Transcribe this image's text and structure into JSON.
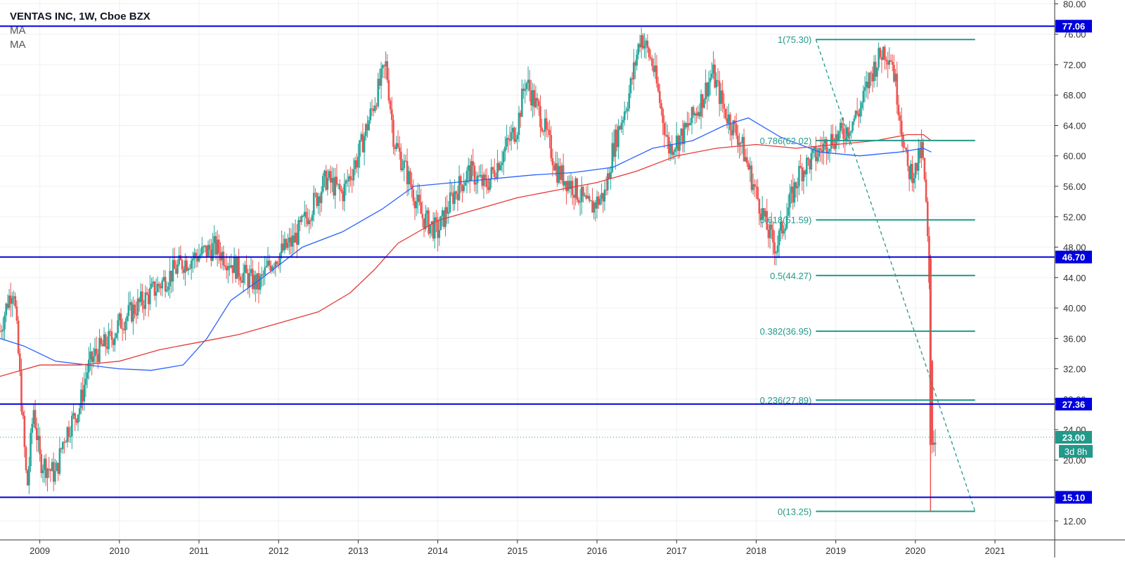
{
  "header": {
    "title": "VENTAS INC, 1W, Cboe BZX",
    "indicators": [
      "MA",
      "MA"
    ]
  },
  "colors": {
    "up": "#26a69a",
    "down": "#ef5350",
    "ma_fast": "#2962ff",
    "ma_slow": "#e53935",
    "level_line": "#0000dd",
    "fib": "#22998a",
    "grid": "#eef0f3"
  },
  "chart_data": {
    "type": "candlestick",
    "title": "VENTAS INC, 1W, Cboe BZX",
    "x_ticks": [
      "2009",
      "2010",
      "2011",
      "2012",
      "2013",
      "2014",
      "2015",
      "2016",
      "2017",
      "2018",
      "2019",
      "2020",
      "2021"
    ],
    "y_ticks": [
      "12.00",
      "20.00",
      "24.00",
      "28.00",
      "32.00",
      "36.00",
      "40.00",
      "44.00",
      "48.00",
      "52.00",
      "56.00",
      "60.00",
      "64.00",
      "68.00",
      "72.00",
      "76.00",
      "80.00"
    ],
    "ylim": [
      9.5,
      80.5
    ],
    "xlim": [
      2008.5,
      2021.75
    ],
    "grid": true,
    "close_series": [
      [
        2008.5,
        37
      ],
      [
        2008.6,
        41
      ],
      [
        2008.67,
        43
      ],
      [
        2008.73,
        34
      ],
      [
        2008.78,
        26
      ],
      [
        2008.84,
        16
      ],
      [
        2008.92,
        27
      ],
      [
        2009.0,
        20
      ],
      [
        2009.1,
        19
      ],
      [
        2009.2,
        18
      ],
      [
        2009.3,
        23
      ],
      [
        2009.4,
        25
      ],
      [
        2009.5,
        27
      ],
      [
        2009.6,
        32
      ],
      [
        2009.7,
        34
      ],
      [
        2009.8,
        35
      ],
      [
        2009.9,
        36
      ],
      [
        2010.0,
        38
      ],
      [
        2010.2,
        40
      ],
      [
        2010.4,
        42
      ],
      [
        2010.6,
        44
      ],
      [
        2010.8,
        46
      ],
      [
        2011.0,
        47
      ],
      [
        2011.2,
        48
      ],
      [
        2011.4,
        46
      ],
      [
        2011.6,
        44
      ],
      [
        2011.75,
        43
      ],
      [
        2011.9,
        46
      ],
      [
        2012.0,
        47
      ],
      [
        2012.2,
        49
      ],
      [
        2012.4,
        53
      ],
      [
        2012.6,
        57
      ],
      [
        2012.8,
        55
      ],
      [
        2013.0,
        60
      ],
      [
        2013.2,
        67
      ],
      [
        2013.35,
        72
      ],
      [
        2013.45,
        62
      ],
      [
        2013.6,
        58
      ],
      [
        2013.8,
        52
      ],
      [
        2014.0,
        50
      ],
      [
        2014.2,
        55
      ],
      [
        2014.4,
        58
      ],
      [
        2014.6,
        56
      ],
      [
        2014.8,
        60
      ],
      [
        2015.0,
        64
      ],
      [
        2015.1,
        70
      ],
      [
        2015.3,
        65
      ],
      [
        2015.5,
        58
      ],
      [
        2015.7,
        56
      ],
      [
        2015.9,
        53
      ],
      [
        2016.1,
        55
      ],
      [
        2016.2,
        61
      ],
      [
        2016.4,
        68
      ],
      [
        2016.55,
        76
      ],
      [
        2016.7,
        72
      ],
      [
        2016.9,
        61
      ],
      [
        2017.1,
        63
      ],
      [
        2017.3,
        67
      ],
      [
        2017.45,
        71
      ],
      [
        2017.6,
        66
      ],
      [
        2017.8,
        62
      ],
      [
        2018.0,
        55
      ],
      [
        2018.15,
        50
      ],
      [
        2018.25,
        48
      ],
      [
        2018.4,
        53
      ],
      [
        2018.55,
        58
      ],
      [
        2018.75,
        60
      ],
      [
        2018.9,
        62
      ],
      [
        2019.1,
        63
      ],
      [
        2019.3,
        66
      ],
      [
        2019.45,
        71
      ],
      [
        2019.6,
        74
      ],
      [
        2019.7,
        73
      ],
      [
        2019.8,
        66
      ],
      [
        2019.9,
        58
      ],
      [
        2020.0,
        58
      ],
      [
        2020.08,
        61
      ],
      [
        2020.12,
        56
      ],
      [
        2020.15,
        50
      ],
      [
        2020.18,
        40
      ],
      [
        2020.21,
        23
      ],
      [
        2020.25,
        23
      ]
    ],
    "series": [
      {
        "values": [
          [
            2008.5,
            36
          ],
          [
            2008.8,
            35
          ],
          [
            2009.2,
            33
          ],
          [
            2009.6,
            32.5
          ],
          [
            2010.0,
            32
          ],
          [
            2010.4,
            31.8
          ],
          [
            2010.8,
            32.5
          ],
          [
            2011.1,
            36
          ],
          [
            2011.4,
            41
          ],
          [
            2011.8,
            44
          ],
          [
            2012.3,
            48
          ],
          [
            2012.8,
            50
          ],
          [
            2013.3,
            53
          ],
          [
            2013.7,
            56
          ],
          [
            2014.2,
            56.5
          ],
          [
            2014.7,
            57
          ],
          [
            2015.2,
            57.5
          ],
          [
            2015.7,
            57.8
          ],
          [
            2016.2,
            58.5
          ],
          [
            2016.7,
            61
          ],
          [
            2017.2,
            62
          ],
          [
            2017.6,
            64
          ],
          [
            2017.9,
            65
          ],
          [
            2018.3,
            62.5
          ],
          [
            2018.8,
            60.5
          ],
          [
            2019.3,
            60
          ],
          [
            2019.8,
            60.5
          ],
          [
            2020.1,
            61
          ],
          [
            2020.2,
            60.5
          ]
        ]
      },
      {
        "values": [
          [
            2008.5,
            31
          ],
          [
            2009.0,
            32.5
          ],
          [
            2009.5,
            32.5
          ],
          [
            2010.0,
            33
          ],
          [
            2010.5,
            34.5
          ],
          [
            2011.0,
            35.5
          ],
          [
            2011.5,
            36.5
          ],
          [
            2012.0,
            38
          ],
          [
            2012.5,
            39.5
          ],
          [
            2012.9,
            42
          ],
          [
            2013.2,
            45
          ],
          [
            2013.5,
            48.5
          ],
          [
            2014.0,
            51.5
          ],
          [
            2014.5,
            53
          ],
          [
            2015.0,
            54.5
          ],
          [
            2015.5,
            55.5
          ],
          [
            2016.0,
            56.5
          ],
          [
            2016.5,
            58
          ],
          [
            2017.0,
            60
          ],
          [
            2017.5,
            61
          ],
          [
            2018.0,
            61.5
          ],
          [
            2018.5,
            61
          ],
          [
            2019.0,
            61.5
          ],
          [
            2019.5,
            62
          ],
          [
            2019.9,
            62.8
          ],
          [
            2020.1,
            62.8
          ],
          [
            2020.2,
            62
          ]
        ]
      }
    ],
    "horizontal_levels": [
      {
        "value": 77.06,
        "label": "77.06"
      },
      {
        "value": 46.7,
        "label": "46.70"
      },
      {
        "value": 27.36,
        "label": "27.36"
      },
      {
        "value": 15.1,
        "label": "15.10"
      }
    ],
    "fibonacci": {
      "x_start": 2018.75,
      "x_end": 2020.75,
      "levels": [
        {
          "value": 75.3,
          "label": "1(75.30)"
        },
        {
          "value": 62.02,
          "label": "0.786(62.02)"
        },
        {
          "value": 51.59,
          "label": "0.618(51.59)"
        },
        {
          "value": 44.27,
          "label": "0.5(44.27)"
        },
        {
          "value": 36.95,
          "label": "0.382(36.95)"
        },
        {
          "value": 27.89,
          "label": "0.236(27.89)"
        },
        {
          "value": 13.25,
          "label": "0(13.25)"
        }
      ],
      "trend_line": {
        "from": [
          2018.75,
          75.3
        ],
        "to": [
          2020.75,
          13.25
        ]
      }
    },
    "last_price": {
      "value": 23.0,
      "label": "23.00",
      "countdown": "3d 8h"
    }
  }
}
